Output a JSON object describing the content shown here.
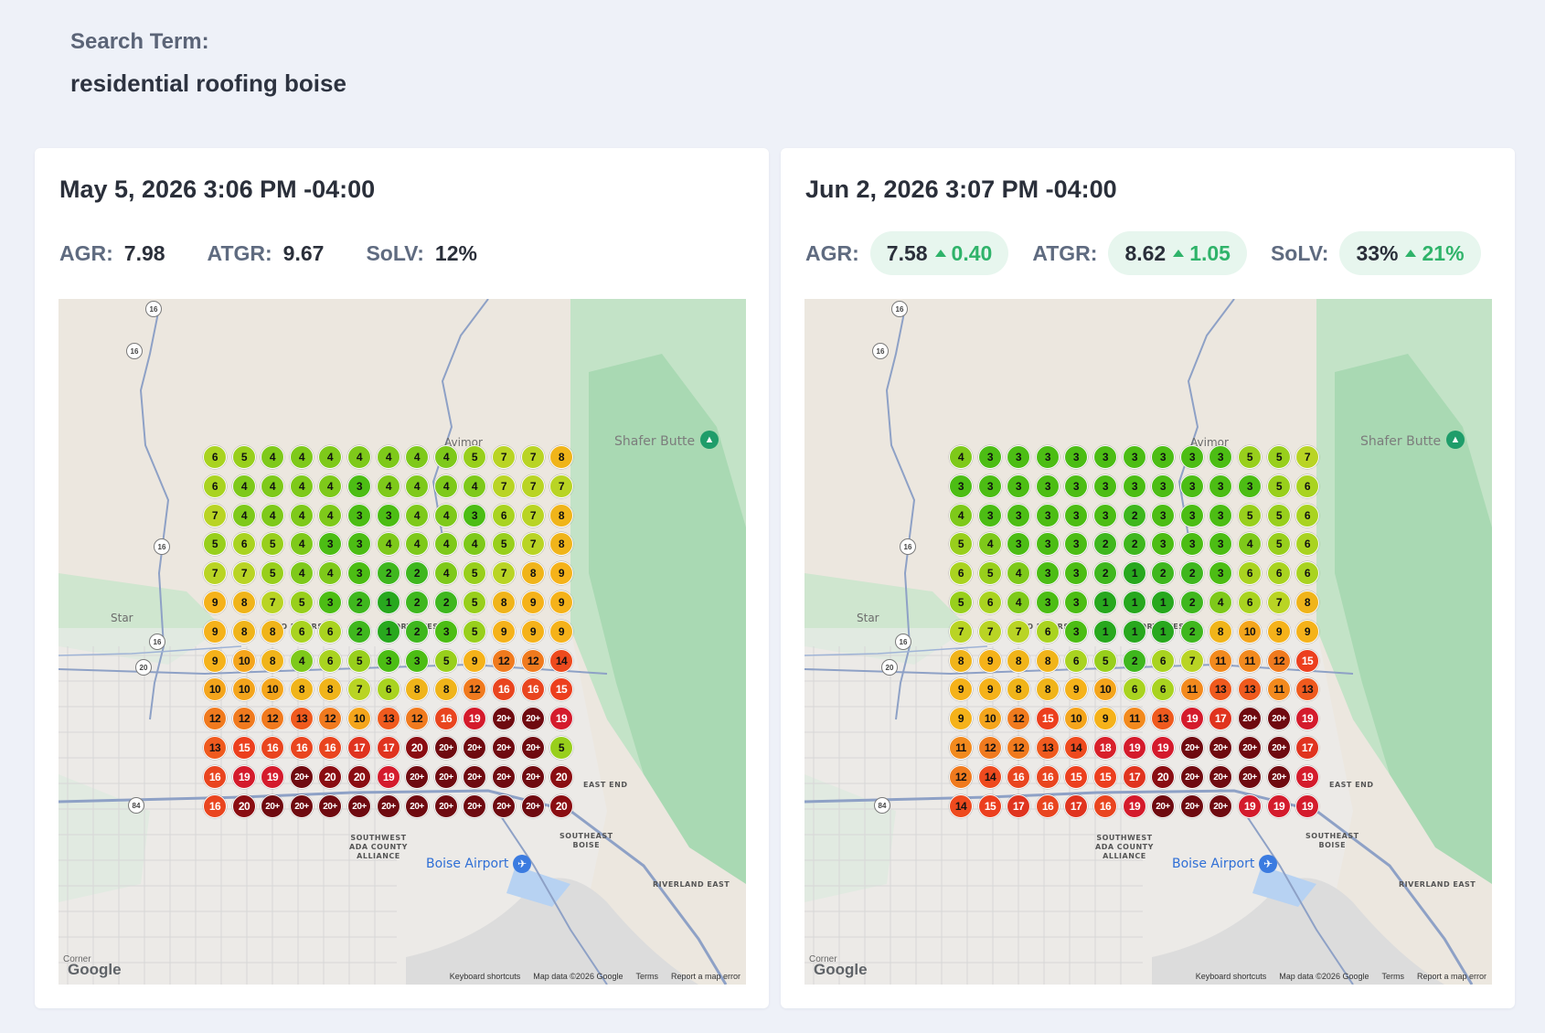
{
  "search": {
    "label": "Search Term:",
    "value": "residential roofing boise"
  },
  "map_labels": {
    "avimor": "Avimor",
    "shafer_butte": "Shafer Butte",
    "star": "Star",
    "airport": "Boise Airport",
    "southwest": "SOUTHWEST\nADA COUNTY\nALLIANCE",
    "southeast": "SOUTHEAST\nBOISE",
    "riverland": "RIVERLAND EAST",
    "east_end": "EAST END",
    "northwest": "NORTHWEST",
    "two_rivers": "TWO RIVERS",
    "routes": [
      "16",
      "16",
      "16",
      "16",
      "20",
      "84"
    ],
    "corner": "Corner",
    "google": "Google",
    "attribution": [
      "Keyboard shortcuts",
      "Map data ©2026 Google",
      "Terms",
      "Report a map error"
    ]
  },
  "colors": {
    "accent_green": "#2fb36a",
    "pill_bg": "#e7f6ee"
  },
  "panels": [
    {
      "timestamp": "May 5, 2026 3:06 PM -04:00",
      "stats": [
        {
          "label": "AGR:",
          "value": "7.98"
        },
        {
          "label": "ATGR:",
          "value": "9.67"
        },
        {
          "label": "SoLV:",
          "value": "12%"
        }
      ],
      "grid": [
        [
          "6",
          "5",
          "4",
          "4",
          "4",
          "4",
          "4",
          "4",
          "4",
          "5",
          "7",
          "7",
          "8"
        ],
        [
          "6",
          "4",
          "4",
          "4",
          "4",
          "3",
          "4",
          "4",
          "4",
          "4",
          "7",
          "7",
          "7"
        ],
        [
          "7",
          "4",
          "4",
          "4",
          "4",
          "3",
          "3",
          "4",
          "4",
          "3",
          "6",
          "7",
          "8"
        ],
        [
          "5",
          "6",
          "5",
          "4",
          "3",
          "3",
          "4",
          "4",
          "4",
          "4",
          "5",
          "7",
          "8"
        ],
        [
          "7",
          "7",
          "5",
          "4",
          "4",
          "3",
          "2",
          "2",
          "4",
          "5",
          "7",
          "8",
          "9"
        ],
        [
          "9",
          "8",
          "7",
          "5",
          "3",
          "2",
          "1",
          "2",
          "2",
          "5",
          "8",
          "9",
          "9"
        ],
        [
          "9",
          "8",
          "8",
          "6",
          "6",
          "2",
          "1",
          "2",
          "3",
          "5",
          "9",
          "9",
          "9"
        ],
        [
          "9",
          "10",
          "8",
          "4",
          "6",
          "5",
          "3",
          "3",
          "5",
          "9",
          "12",
          "12",
          "14"
        ],
        [
          "10",
          "10",
          "10",
          "8",
          "8",
          "7",
          "6",
          "8",
          "8",
          "12",
          "16",
          "16",
          "15"
        ],
        [
          "12",
          "12",
          "12",
          "13",
          "12",
          "10",
          "13",
          "12",
          "16",
          "19",
          "20+",
          "20+",
          "19"
        ],
        [
          "13",
          "15",
          "16",
          "16",
          "16",
          "17",
          "17",
          "20",
          "20+",
          "20+",
          "20+",
          "20+",
          "5"
        ],
        [
          "16",
          "19",
          "19",
          "20+",
          "20",
          "20",
          "19",
          "20+",
          "20+",
          "20+",
          "20+",
          "20+",
          "20"
        ],
        [
          "16",
          "20",
          "20+",
          "20+",
          "20+",
          "20+",
          "20+",
          "20+",
          "20+",
          "20+",
          "20+",
          "20+",
          "20"
        ]
      ]
    },
    {
      "timestamp": "Jun 2, 2026 3:07 PM -04:00",
      "stats": [
        {
          "label": "AGR:",
          "value": "7.58",
          "delta": "0.40"
        },
        {
          "label": "ATGR:",
          "value": "8.62",
          "delta": "1.05"
        },
        {
          "label": "SoLV:",
          "value": "33%",
          "delta": "21%"
        }
      ],
      "grid": [
        [
          "4",
          "3",
          "3",
          "3",
          "3",
          "3",
          "3",
          "3",
          "3",
          "3",
          "5",
          "5",
          "7"
        ],
        [
          "3",
          "3",
          "3",
          "3",
          "3",
          "3",
          "3",
          "3",
          "3",
          "3",
          "3",
          "5",
          "6"
        ],
        [
          "4",
          "3",
          "3",
          "3",
          "3",
          "3",
          "2",
          "3",
          "3",
          "3",
          "5",
          "5",
          "6"
        ],
        [
          "5",
          "4",
          "3",
          "3",
          "3",
          "2",
          "2",
          "3",
          "3",
          "3",
          "4",
          "5",
          "6"
        ],
        [
          "6",
          "5",
          "4",
          "3",
          "3",
          "2",
          "1",
          "2",
          "2",
          "3",
          "6",
          "6",
          "6"
        ],
        [
          "5",
          "6",
          "4",
          "3",
          "3",
          "1",
          "1",
          "1",
          "2",
          "4",
          "6",
          "7",
          "8"
        ],
        [
          "7",
          "7",
          "7",
          "6",
          "3",
          "1",
          "1",
          "1",
          "2",
          "8",
          "10",
          "9",
          "9"
        ],
        [
          "8",
          "9",
          "8",
          "8",
          "6",
          "5",
          "2",
          "6",
          "7",
          "11",
          "11",
          "12",
          "15"
        ],
        [
          "9",
          "9",
          "8",
          "8",
          "9",
          "10",
          "6",
          "6",
          "11",
          "13",
          "13",
          "11",
          "13"
        ],
        [
          "9",
          "10",
          "12",
          "15",
          "10",
          "9",
          "11",
          "13",
          "19",
          "17",
          "20+",
          "20+",
          "19"
        ],
        [
          "11",
          "12",
          "12",
          "13",
          "14",
          "18",
          "19",
          "19",
          "20+",
          "20+",
          "20+",
          "20+",
          "17"
        ],
        [
          "12",
          "14",
          "16",
          "16",
          "15",
          "15",
          "17",
          "20",
          "20+",
          "20+",
          "20+",
          "20+",
          "19"
        ],
        [
          "14",
          "15",
          "17",
          "16",
          "17",
          "16",
          "19",
          "20+",
          "20+",
          "20+",
          "19",
          "19",
          "19"
        ]
      ]
    }
  ]
}
